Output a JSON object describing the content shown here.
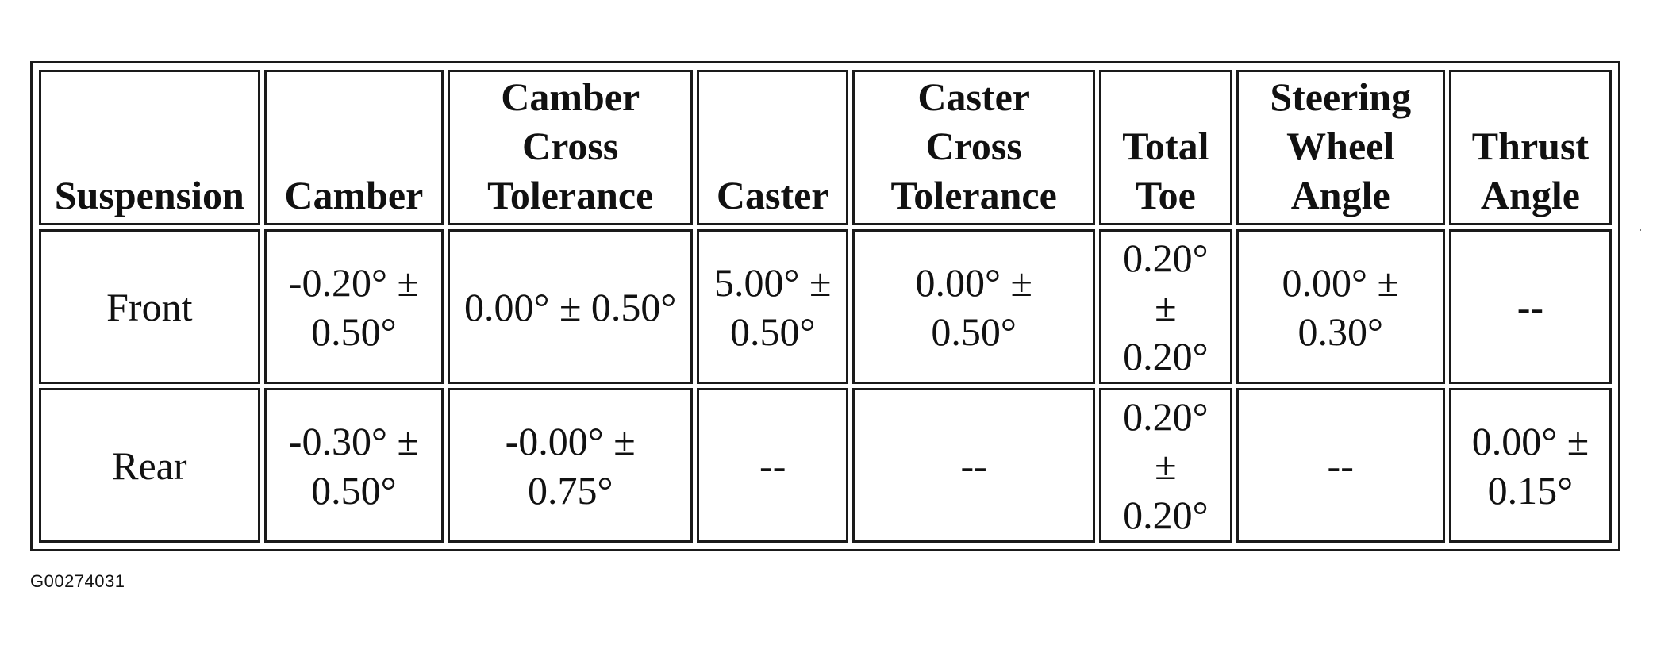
{
  "table": {
    "headers": {
      "suspension": "Suspension",
      "camber": "Camber",
      "camber_cross_tolerance": "Camber Cross Tolerance",
      "caster": "Caster",
      "caster_cross_tolerance": "Caster Cross Tolerance",
      "total_toe": "Total Toe",
      "steering_wheel_angle": "Steering Wheel Angle",
      "thrust_angle": "Thrust Angle"
    },
    "rows": [
      {
        "suspension": "Front",
        "camber": "-0.20° ± 0.50°",
        "camber_cross_tolerance": "0.00° ± 0.50°",
        "caster": "5.00° ± 0.50°",
        "caster_cross_tolerance": "0.00° ± 0.50°",
        "total_toe": "0.20° ± 0.20°",
        "steering_wheel_angle": "0.00° ± 0.30°",
        "thrust_angle": "--"
      },
      {
        "suspension": "Rear",
        "camber": "-0.30° ± 0.50°",
        "camber_cross_tolerance": "-0.00° ± 0.75°",
        "caster": "--",
        "caster_cross_tolerance": "--",
        "total_toe": "0.20° ± 0.20°",
        "steering_wheel_angle": "--",
        "thrust_angle": "0.00° ± 0.15°"
      }
    ]
  },
  "figure_id": "G00274031"
}
